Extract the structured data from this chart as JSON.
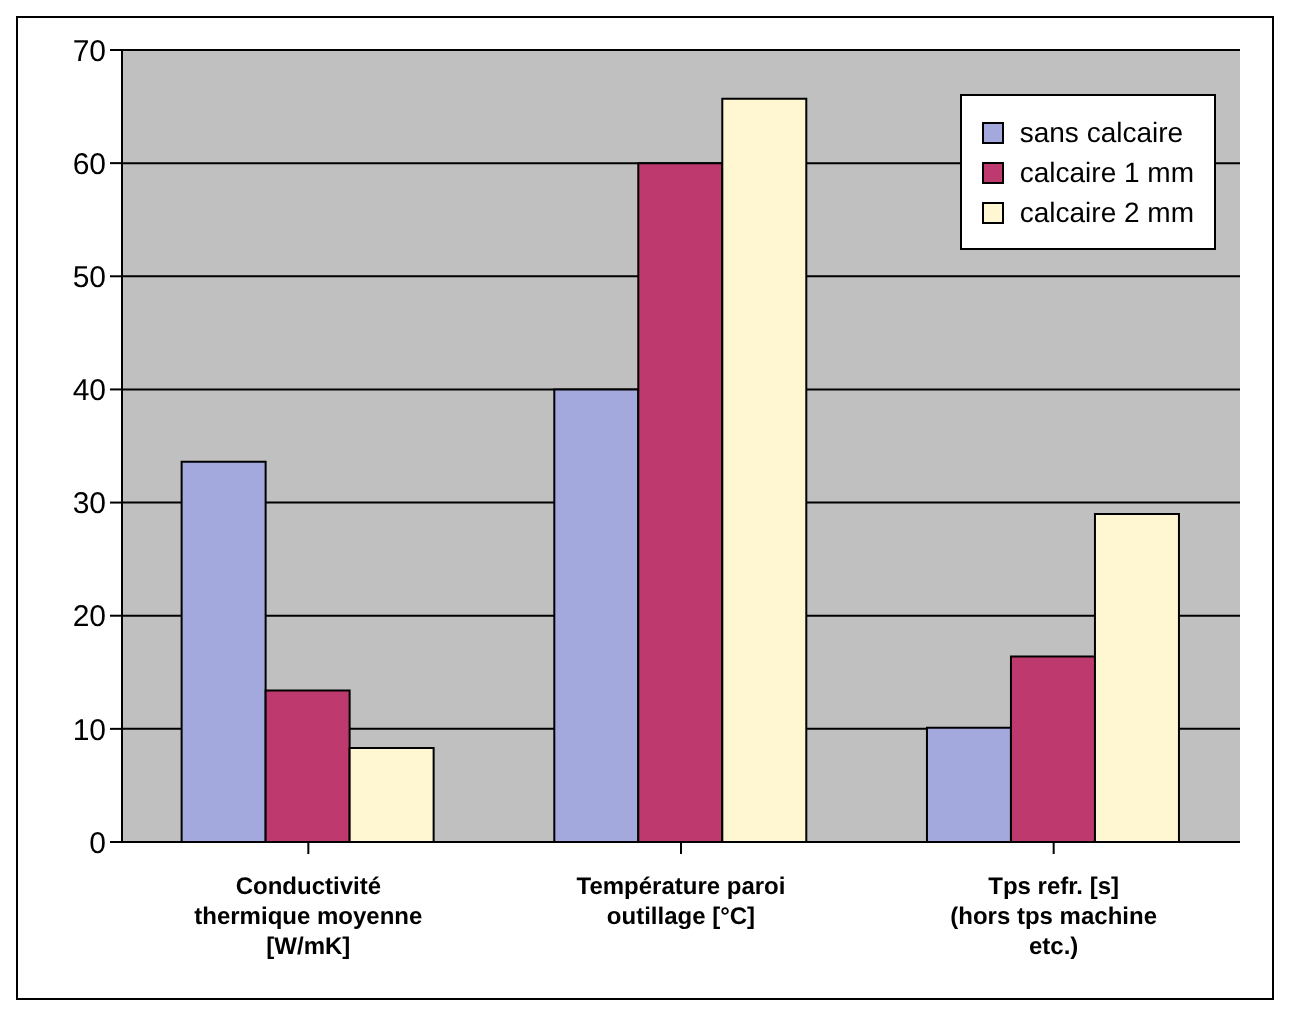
{
  "chart_data": {
    "type": "bar",
    "categories": [
      "Conductivité thermique moyenne [W/mK]",
      "Température paroi outillage [°C]",
      "Tps refr. [s] (hors tps machine etc.)"
    ],
    "series": [
      {
        "name": "sans calcaire",
        "color": "#a3a8dd",
        "values": [
          33.6,
          40,
          10.1
        ]
      },
      {
        "name": "calcaire 1 mm",
        "color": "#be3a6e",
        "values": [
          13.4,
          60,
          16.4
        ]
      },
      {
        "name": "calcaire 2 mm",
        "color": "#fff6d2",
        "values": [
          8.3,
          65.7,
          29
        ]
      }
    ],
    "ylim": [
      0,
      70
    ],
    "yticks": [
      0,
      10,
      20,
      30,
      40,
      50,
      60,
      70
    ],
    "grid": "y",
    "legend": "top right"
  }
}
